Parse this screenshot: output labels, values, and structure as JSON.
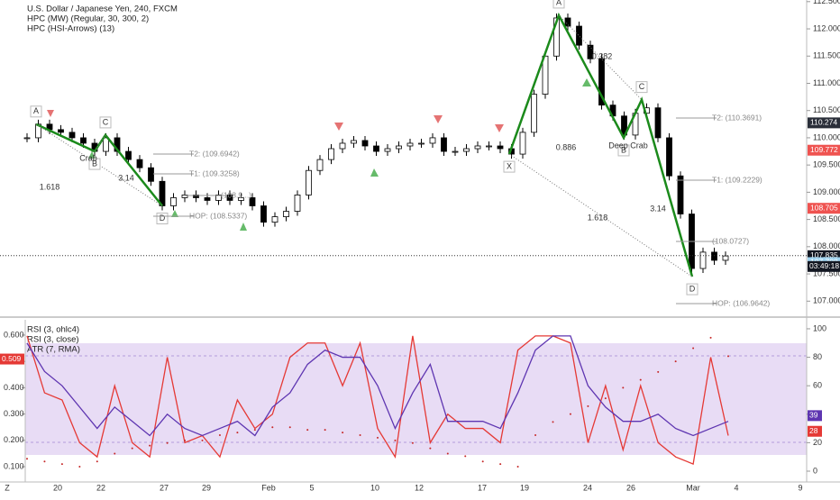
{
  "chart_data": {
    "type": "candlestick",
    "title": "U.S. Dollar / Japanese Yen, 240, FXCM",
    "legend": [
      "HPC (MW) (Regular, 30, 300, 2)",
      "HPC (HSI-Arrows) (13)"
    ],
    "closes": [
      110.0,
      110.25,
      110.15,
      110.1,
      110.0,
      109.9,
      109.75,
      110.0,
      109.75,
      109.6,
      109.45,
      109.2,
      108.75,
      108.9,
      108.95,
      108.9,
      108.85,
      108.95,
      108.85,
      108.9,
      108.75,
      108.45,
      108.55,
      108.65,
      108.95,
      109.4,
      109.6,
      109.8,
      109.9,
      109.95,
      109.85,
      109.75,
      109.8,
      109.85,
      109.9,
      109.9,
      110.0,
      109.75,
      109.75,
      109.8,
      109.85,
      109.85,
      109.8,
      109.7,
      110.1,
      110.8,
      111.5,
      112.2,
      112.05,
      111.7,
      111.45,
      110.6,
      110.4,
      110.05,
      110.45,
      110.55,
      110.0,
      109.3,
      108.6,
      107.6,
      107.9,
      107.75,
      107.83
    ],
    "ylim": [
      106.74,
      112.53
    ],
    "yticks": [
      {
        "value": 112.5,
        "label": "112.500"
      },
      {
        "value": 112,
        "label": "112.000"
      },
      {
        "value": 111.5,
        "label": "111.500"
      },
      {
        "value": 111,
        "label": "111.000"
      },
      {
        "value": 110.5,
        "label": "110.500"
      },
      {
        "value": 110,
        "label": "110.000"
      },
      {
        "value": 109.5,
        "label": "109.500"
      },
      {
        "value": 109,
        "label": "109.000"
      },
      {
        "value": 108.5,
        "label": "108.500"
      },
      {
        "value": 108,
        "label": "108.000"
      },
      {
        "value": 107.5,
        "label": "107.500"
      },
      {
        "value": 107,
        "label": "107.000"
      }
    ],
    "price_tags": [
      {
        "value": 110.274,
        "color": "#2a2e39"
      },
      {
        "value": 109.772,
        "color": "#ef5350"
      },
      {
        "value": 108.705,
        "color": "#ef5350"
      },
      {
        "value": 107.835,
        "color": "#131722"
      },
      {
        "value": 107.708,
        "color": "#9fd3f0"
      }
    ],
    "countdown": "03:49:18",
    "patterns": [
      {
        "name": "Crab",
        "points": [
          {
            "label": "A",
            "price": 110.25
          },
          {
            "label": "B",
            "price": 109.75
          },
          {
            "label": "C",
            "price": 110.05
          },
          {
            "label": "D",
            "price": 108.75
          }
        ],
        "ratios": [
          "3.14",
          "1.618"
        ],
        "levels": [
          "T2: (109.6942)",
          "T1: (109.3258)",
          "(108.9...)",
          "HOP: (108.5337)"
        ]
      },
      {
        "name": "Deep Crab",
        "points": [
          {
            "label": "X",
            "price": 109.7
          },
          {
            "label": "A",
            "price": 112.25
          },
          {
            "label": "B",
            "price": 110.0
          },
          {
            "label": "C",
            "price": 110.7
          },
          {
            "label": "D",
            "price": 107.45
          }
        ],
        "ratios": [
          "0.382",
          "0.886",
          "3.14",
          "1.618"
        ],
        "levels": [
          "T2: (110.3691)",
          "T1: (109.2229)",
          "(108.0727)",
          "HOP: (106.9642)"
        ]
      }
    ],
    "lower": {
      "legend": [
        "RSI (3, ohlc4)",
        "RSI (3, close)",
        "ATR (7, RMA)"
      ],
      "series": [
        {
          "name": "RSI (3, ohlc4)",
          "color": "#e53935",
          "values": [
            95,
            55,
            50,
            20,
            10,
            60,
            20,
            10,
            80,
            20,
            25,
            10,
            50,
            30,
            40,
            80,
            90,
            90,
            60,
            90,
            30,
            10,
            95,
            20,
            40,
            30,
            30,
            20,
            85,
            95,
            95,
            90,
            20,
            60,
            15,
            60,
            20,
            10,
            5,
            80,
            25
          ]
        },
        {
          "name": "RSI (3, close)",
          "color": "#5e35b1",
          "values": [
            90,
            70,
            60,
            45,
            30,
            45,
            35,
            25,
            40,
            30,
            25,
            30,
            35,
            25,
            45,
            55,
            75,
            85,
            80,
            80,
            60,
            30,
            55,
            75,
            35,
            35,
            35,
            30,
            55,
            85,
            95,
            95,
            60,
            45,
            35,
            35,
            40,
            30,
            25,
            30,
            35
          ]
        },
        {
          "name": "ATR (7, RMA)",
          "color": "#c62828",
          "axis": "y2",
          "values": [
            0.13,
            0.12,
            0.11,
            0.1,
            0.12,
            0.15,
            0.17,
            0.18,
            0.19,
            0.2,
            0.2,
            0.22,
            0.23,
            0.24,
            0.25,
            0.25,
            0.24,
            0.24,
            0.23,
            0.22,
            0.21,
            0.2,
            0.19,
            0.17,
            0.15,
            0.14,
            0.12,
            0.11,
            0.1,
            0.22,
            0.27,
            0.3,
            0.33,
            0.36,
            0.4,
            0.43,
            0.46,
            0.5,
            0.55,
            0.59,
            0.52
          ]
        }
      ],
      "ylim": [
        -7.6,
        106.3
      ],
      "yticks": [
        100,
        80,
        60,
        40,
        20,
        0
      ],
      "y2lim": [
        0.042,
        0.658
      ],
      "y2ticks": [
        {
          "value": 0.6,
          "label": "0.600"
        },
        {
          "value": 0.5,
          "label": "0.500"
        },
        {
          "value": 0.4,
          "label": "0.400"
        },
        {
          "value": 0.3,
          "label": "0.300"
        },
        {
          "value": 0.2,
          "label": "0.200"
        },
        {
          "value": 0.1,
          "label": "0.100"
        }
      ],
      "tags": [
        {
          "value": 0.509,
          "axis": "y2",
          "color": "#e53935"
        },
        {
          "value": 39,
          "color": "#5e35b1"
        },
        {
          "value": 28,
          "color": "#e53935"
        }
      ]
    },
    "categories": [
      "20",
      "22",
      "27",
      "29",
      "Feb",
      "5",
      "10",
      "12",
      "17",
      "19",
      "24",
      "26",
      "Mar",
      "4",
      "9"
    ],
    "scale_label": "Z"
  }
}
